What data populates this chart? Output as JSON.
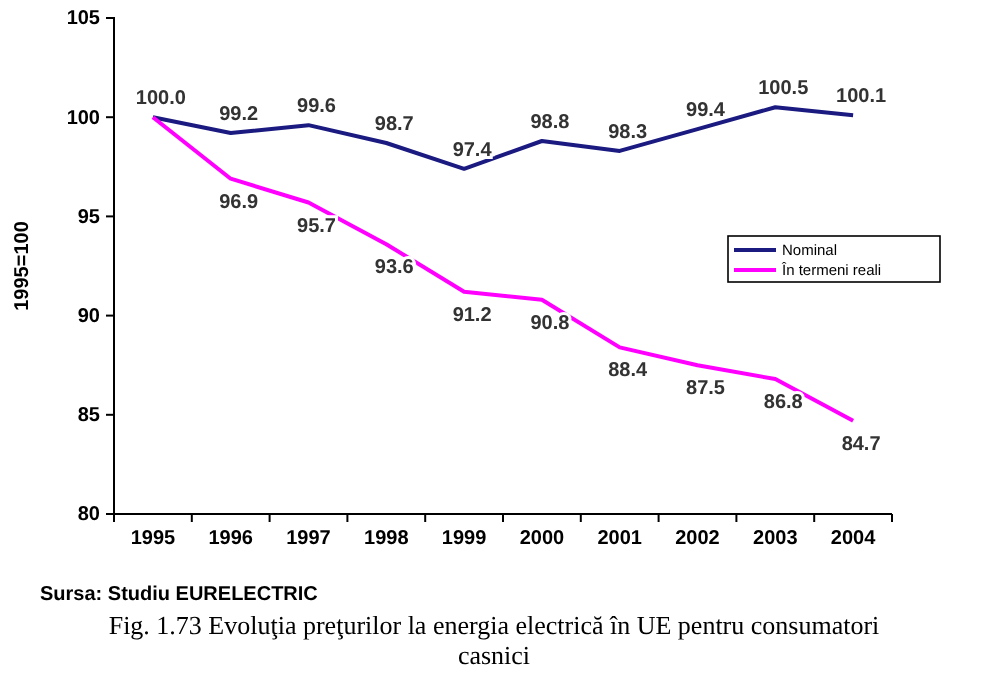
{
  "chart_data": {
    "type": "line",
    "ylabel": "1995=100",
    "categories": [
      "1995",
      "1996",
      "1997",
      "1998",
      "1999",
      "2000",
      "2001",
      "2002",
      "2003",
      "2004"
    ],
    "series": [
      {
        "name": "Nominal",
        "color": "#1a1a80",
        "values": [
          100.0,
          99.2,
          99.6,
          98.7,
          97.4,
          98.8,
          98.3,
          99.4,
          100.5,
          100.1
        ],
        "value_labels": [
          "100.0",
          "99.2",
          "99.6",
          "98.7",
          "97.4",
          "98.8",
          "98.3",
          "99.4",
          "100.5",
          "100.1"
        ]
      },
      {
        "name": "În termeni reali",
        "color": "#ff00ff",
        "values": [
          100.0,
          96.9,
          95.7,
          93.6,
          91.2,
          90.8,
          88.4,
          87.5,
          86.8,
          84.7
        ],
        "value_labels": [
          null,
          "96.9",
          "95.7",
          "93.6",
          "91.2",
          "90.8",
          "88.4",
          "87.5",
          "86.8",
          "84.7"
        ]
      }
    ],
    "ylim": [
      80,
      105
    ],
    "yticks": [
      80,
      85,
      90,
      95,
      100,
      105
    ],
    "grid": false,
    "legend": "right",
    "marker": "none",
    "line_style": "solid",
    "annotations": [
      "Sursa: Studiu EURELECTRIC",
      "Fig. 1.73 Evoluţia preţurilor la energia electrică în UE pentru consumatori casnici"
    ]
  }
}
